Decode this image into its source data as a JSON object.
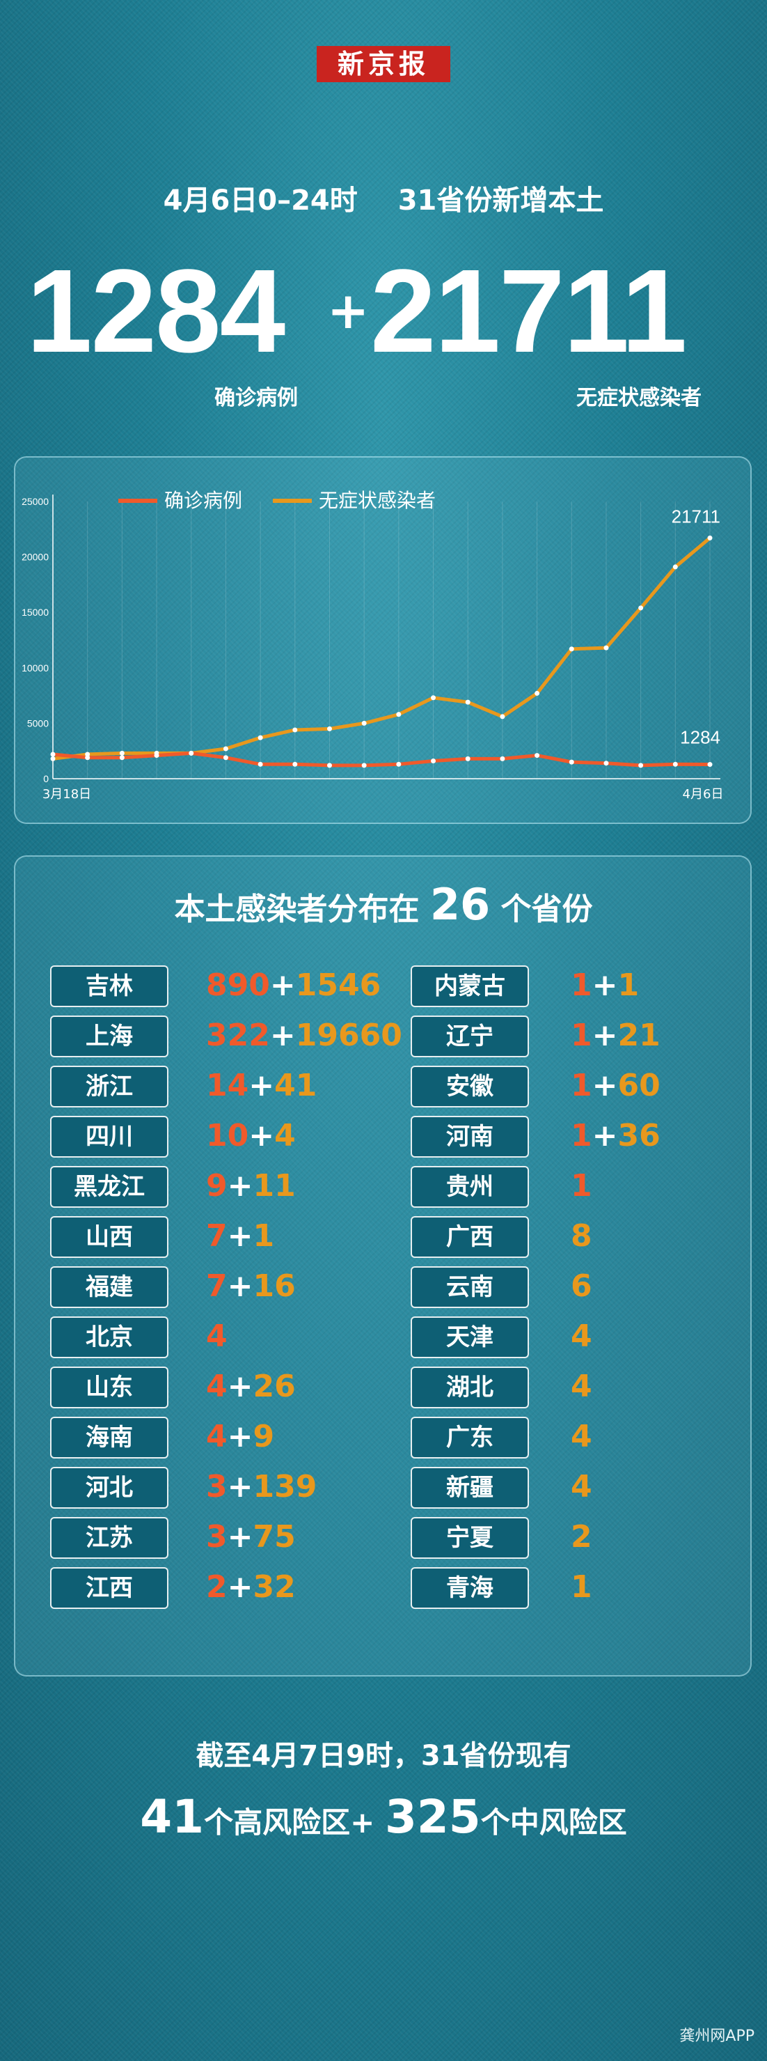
{
  "logo": "新京报",
  "header": {
    "date": "4月6日0–24时",
    "desc": "31省份新增本土",
    "confirmed": "1284",
    "asymptomatic": "21711",
    "confirmed_label": "确诊病例",
    "asymptomatic_label": "无症状感染者"
  },
  "chart_data": {
    "type": "line",
    "x": [
      "3月18日",
      "3月19日",
      "3月20日",
      "3月21日",
      "3月22日",
      "3月23日",
      "3月24日",
      "3月25日",
      "3月26日",
      "3月27日",
      "3月28日",
      "3月29日",
      "3月30日",
      "3月31日",
      "4月1日",
      "4月2日",
      "4月3日",
      "4月4日",
      "4月5日",
      "4月6日"
    ],
    "series": [
      {
        "name": "确诊病例",
        "color": "#f05a2b",
        "values": [
          2200,
          1900,
          1900,
          2100,
          2300,
          1900,
          1300,
          1300,
          1200,
          1200,
          1300,
          1600,
          1800,
          1800,
          2100,
          1500,
          1400,
          1200,
          1300,
          1284
        ]
      },
      {
        "name": "无症状感染者",
        "color": "#e8981d",
        "values": [
          1800,
          2200,
          2300,
          2300,
          2300,
          2700,
          3700,
          4400,
          4500,
          5000,
          5800,
          7300,
          6900,
          5600,
          7700,
          11700,
          11800,
          15400,
          19100,
          21711
        ]
      }
    ],
    "ylim": [
      0,
      25000
    ],
    "yticks": [
      "0",
      "5000",
      "10000",
      "15000",
      "20000",
      "25000"
    ],
    "x_start_label": "3月18日",
    "x_end_label": "4月6日",
    "end_labels": {
      "asymptomatic": "21711",
      "confirmed": "1284"
    },
    "grid": true,
    "legend": "top-left"
  },
  "distribution": {
    "title_pre": "本土感染者分布在",
    "title_num": "26",
    "title_post": "个省份",
    "left": [
      {
        "name": "吉林",
        "c": "890",
        "a": "1546"
      },
      {
        "name": "上海",
        "c": "322",
        "a": "19660"
      },
      {
        "name": "浙江",
        "c": "14",
        "a": "41"
      },
      {
        "name": "四川",
        "c": "10",
        "a": "4"
      },
      {
        "name": "黑龙江",
        "c": "9",
        "a": "11"
      },
      {
        "name": "山西",
        "c": "7",
        "a": "1"
      },
      {
        "name": "福建",
        "c": "7",
        "a": "16"
      },
      {
        "name": "北京",
        "c": "4",
        "a": ""
      },
      {
        "name": "山东",
        "c": "4",
        "a": "26"
      },
      {
        "name": "海南",
        "c": "4",
        "a": "9"
      },
      {
        "name": "河北",
        "c": "3",
        "a": "139"
      },
      {
        "name": "江苏",
        "c": "3",
        "a": "75"
      },
      {
        "name": "江西",
        "c": "2",
        "a": "32"
      }
    ],
    "right": [
      {
        "name": "内蒙古",
        "c": "1",
        "a": "1"
      },
      {
        "name": "辽宁",
        "c": "1",
        "a": "21"
      },
      {
        "name": "安徽",
        "c": "1",
        "a": "60"
      },
      {
        "name": "河南",
        "c": "1",
        "a": "36"
      },
      {
        "name": "贵州",
        "c": "1",
        "a": ""
      },
      {
        "name": "广西",
        "c": "",
        "a": "8"
      },
      {
        "name": "云南",
        "c": "",
        "a": "6"
      },
      {
        "name": "天津",
        "c": "",
        "a": "4"
      },
      {
        "name": "湖北",
        "c": "",
        "a": "4"
      },
      {
        "name": "广东",
        "c": "",
        "a": "4"
      },
      {
        "name": "新疆",
        "c": "",
        "a": "4"
      },
      {
        "name": "宁夏",
        "c": "",
        "a": "2"
      },
      {
        "name": "青海",
        "c": "",
        "a": "1"
      }
    ]
  },
  "footer": {
    "line1": "截至4月7日9时，31省份现有",
    "high_num": "41",
    "high_label": "个高风险区+",
    "mid_num": "325",
    "mid_label": "个中风险区",
    "watermark": "龚州网APP"
  },
  "colors": {
    "confirmed": "#f05a2b",
    "asymptomatic": "#e8981d",
    "logo_bg": "#c9241f"
  }
}
